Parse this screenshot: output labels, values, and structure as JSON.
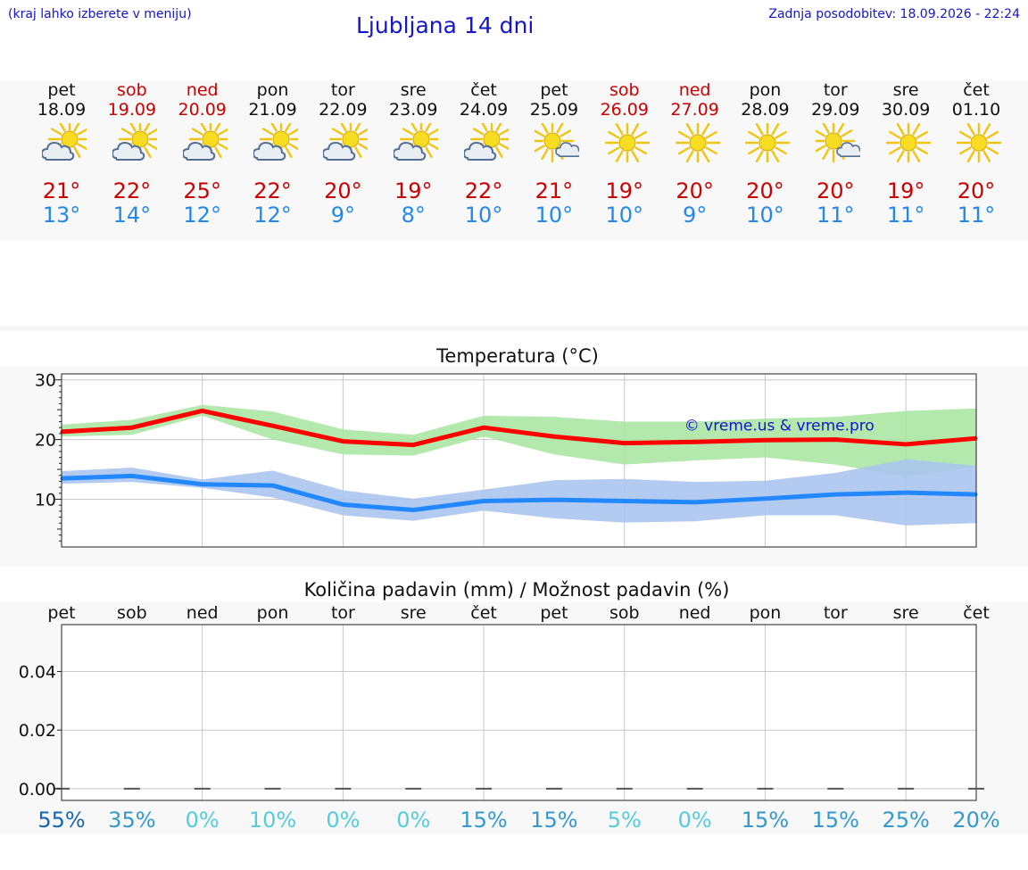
{
  "header": {
    "note": "(kraj lahko izberete v meniju)",
    "title": "Ljubljana 14 dni",
    "updated": "Zadnja posodobitev: 18.09.2026 - 22:24"
  },
  "days": [
    {
      "name": "pet",
      "date": "18.09",
      "weekend": false,
      "icon": "sun-cloud-icon",
      "max": "21°",
      "min": "13°"
    },
    {
      "name": "sob",
      "date": "19.09",
      "weekend": true,
      "icon": "sun-cloud-icon",
      "max": "22°",
      "min": "14°"
    },
    {
      "name": "ned",
      "date": "20.09",
      "weekend": true,
      "icon": "sun-cloud-icon",
      "max": "25°",
      "min": "12°"
    },
    {
      "name": "pon",
      "date": "21.09",
      "weekend": false,
      "icon": "sun-cloud-icon",
      "max": "22°",
      "min": "12°"
    },
    {
      "name": "tor",
      "date": "22.09",
      "weekend": false,
      "icon": "sun-cloud-icon",
      "max": "20°",
      "min": "9°"
    },
    {
      "name": "sre",
      "date": "23.09",
      "weekend": false,
      "icon": "sun-cloud-icon",
      "max": "19°",
      "min": "8°"
    },
    {
      "name": "čet",
      "date": "24.09",
      "weekend": false,
      "icon": "sun-cloud-icon",
      "max": "22°",
      "min": "10°"
    },
    {
      "name": "pet",
      "date": "25.09",
      "weekend": false,
      "icon": "sun-small-cloud-icon",
      "max": "21°",
      "min": "10°"
    },
    {
      "name": "sob",
      "date": "26.09",
      "weekend": true,
      "icon": "sun-icon",
      "max": "19°",
      "min": "10°"
    },
    {
      "name": "ned",
      "date": "27.09",
      "weekend": true,
      "icon": "sun-icon",
      "max": "20°",
      "min": "9°"
    },
    {
      "name": "pon",
      "date": "28.09",
      "weekend": false,
      "icon": "sun-icon",
      "max": "20°",
      "min": "10°"
    },
    {
      "name": "tor",
      "date": "29.09",
      "weekend": false,
      "icon": "sun-small-cloud-icon",
      "max": "20°",
      "min": "11°"
    },
    {
      "name": "sre",
      "date": "30.09",
      "weekend": false,
      "icon": "sun-icon",
      "max": "19°",
      "min": "11°"
    },
    {
      "name": "čet",
      "date": "01.10",
      "weekend": false,
      "icon": "sun-icon",
      "max": "20°",
      "min": "11°"
    }
  ],
  "colors": {
    "max": "#ff0000",
    "max_band": "#a8e6a2",
    "min": "#2288ff",
    "min_band": "#a9c4ef",
    "grid": "#c8c8c8",
    "watermark": "#1515cc"
  },
  "chart_data": [
    {
      "type": "line",
      "title": "Temperatura (°C)",
      "ylim": [
        2,
        31
      ],
      "yticks": [
        10,
        20,
        30
      ],
      "grid": true,
      "watermark": "© vreme.us & vreme.pro",
      "series": [
        {
          "name": "max",
          "values": [
            21.3,
            22,
            24.8,
            22.3,
            19.7,
            19.1,
            22,
            20.5,
            19.4,
            19.6,
            19.9,
            20,
            19.2,
            20.2
          ],
          "band_low": [
            20.5,
            20.8,
            24,
            20,
            17.5,
            17.3,
            20.5,
            17.5,
            15.8,
            16.5,
            17,
            15.8,
            13.8,
            15.5
          ],
          "band_high": [
            22.5,
            23.3,
            25.8,
            24.7,
            21.7,
            20.8,
            24,
            23.8,
            23,
            23,
            23.5,
            23.8,
            24.8,
            25.2
          ]
        },
        {
          "name": "min",
          "values": [
            13.5,
            13.9,
            12.5,
            12.3,
            9.1,
            8.2,
            9.7,
            9.9,
            9.7,
            9.5,
            10.1,
            10.8,
            11.1,
            10.8
          ],
          "band_low": [
            12.6,
            12.9,
            11.9,
            10.3,
            7.3,
            6.4,
            8.1,
            6.8,
            6.1,
            6.3,
            7.3,
            7.3,
            5.6,
            6
          ],
          "band_high": [
            14.7,
            15.3,
            13.3,
            14.8,
            11.5,
            10.1,
            11.6,
            13.2,
            13.4,
            12.9,
            13.1,
            14.4,
            16.7,
            15.6
          ]
        }
      ]
    },
    {
      "type": "bar",
      "title": "Količina padavin (mm) / Možnost padavin (%)",
      "categories": [
        "pet",
        "sob",
        "ned",
        "pon",
        "tor",
        "sre",
        "čet",
        "pet",
        "sob",
        "ned",
        "pon",
        "tor",
        "sre",
        "čet"
      ],
      "values": [
        0,
        0,
        0,
        0,
        0,
        0,
        0,
        0,
        0,
        0,
        0,
        0,
        0,
        0
      ],
      "ylim": [
        -0.004,
        0.056
      ],
      "yticks": [
        "0.00",
        "0.02",
        "0.04"
      ],
      "ytick_values": [
        0,
        0.02,
        0.04
      ],
      "probability": [
        "55%",
        "35%",
        "0%",
        "10%",
        "0%",
        "0%",
        "15%",
        "15%",
        "5%",
        "0%",
        "15%",
        "15%",
        "25%",
        "20%"
      ],
      "probability_colors": [
        "#1565b0",
        "#3399cc",
        "#55ccdd",
        "#55ccdd",
        "#55ccdd",
        "#55ccdd",
        "#3399cc",
        "#3399cc",
        "#55ccdd",
        "#55ccdd",
        "#3399cc",
        "#3399cc",
        "#3399cc",
        "#3399cc"
      ]
    }
  ]
}
